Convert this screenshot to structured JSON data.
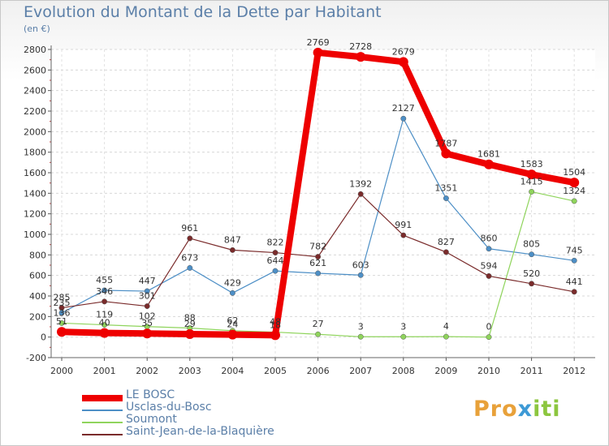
{
  "title": "Evolution du Montant de la Dette par Habitant",
  "subtitle": "(en €)",
  "logo": {
    "part1": "Pro",
    "part2": "x",
    "part3": "iti"
  },
  "chart_data": {
    "type": "line",
    "title": "Evolution du Montant de la Dette par Habitant",
    "subtitle": "(en €)",
    "x": [
      "2000",
      "2001",
      "2002",
      "2003",
      "2004",
      "2005",
      "2006",
      "2007",
      "2008",
      "2009",
      "2010",
      "2011",
      "2012"
    ],
    "ylim": [
      -200,
      2800
    ],
    "yticks": [
      -200,
      0,
      200,
      400,
      600,
      800,
      1000,
      1200,
      1400,
      1600,
      1800,
      2000,
      2200,
      2400,
      2600,
      2800
    ],
    "grid": true,
    "legend": "bottom-left",
    "series": [
      {
        "name": "Usclas-du-Bosc",
        "color": "#4d8fc6",
        "values": [
          235,
          455,
          447,
          673,
          429,
          644,
          621,
          603,
          2127,
          1351,
          860,
          805,
          745
        ]
      },
      {
        "name": "Soumont",
        "color": "#8fd45c",
        "values": [
          136,
          119,
          102,
          88,
          62,
          48,
          27,
          3,
          3,
          4,
          0,
          1415,
          1324
        ]
      },
      {
        "name": "Saint-Jean-de-la-Blaquière",
        "color": "#7a2b2b",
        "values": [
          285,
          346,
          301,
          961,
          847,
          822,
          782,
          1392,
          991,
          827,
          594,
          520,
          441
        ]
      },
      {
        "name": "LE BOSC",
        "color": "#ee0000",
        "values": [
          51,
          40,
          35,
          29,
          24,
          18,
          2769,
          2728,
          2679,
          1787,
          1681,
          1583,
          1504
        ]
      }
    ],
    "value_labels": [
      [
        "235",
        "455",
        "447",
        "673",
        "429",
        "644",
        "621",
        "603",
        "2127",
        "1351",
        "860",
        "805",
        "745"
      ],
      [
        "136",
        "119",
        "102",
        "88",
        "62",
        "48",
        "27",
        "3",
        "3",
        "4",
        "0",
        "1415",
        "1324"
      ],
      [
        "285",
        "346",
        "301",
        "961",
        "847",
        "822",
        "782",
        "1392",
        "991",
        "827",
        "594",
        "520",
        "441"
      ],
      [
        "51",
        "40",
        "35",
        "29",
        "24",
        "18",
        "2769",
        "2728",
        "2679",
        "1787",
        "1681",
        "1583",
        "1504"
      ]
    ]
  }
}
